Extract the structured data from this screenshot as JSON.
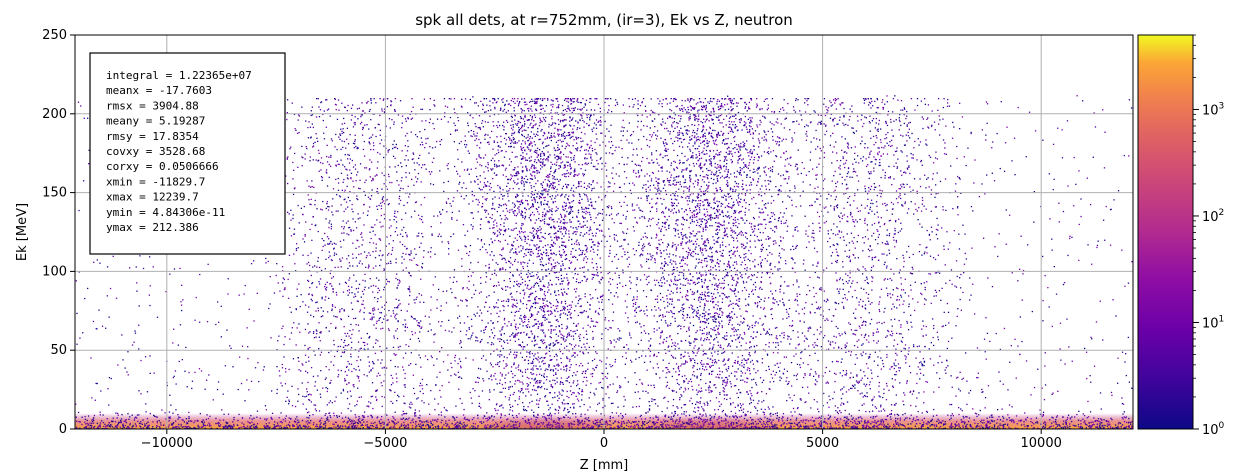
{
  "chart_data": {
    "type": "heatmap",
    "title": "spk all dets, at r=752mm, (ir=3), Ek vs Z, neutron",
    "xlabel": "Z [mm]",
    "ylabel": "Ek [MeV]",
    "xlim": [
      -12100,
      12100
    ],
    "ylim": [
      0,
      250
    ],
    "x_ticks": [
      -10000,
      -5000,
      0,
      5000,
      10000
    ],
    "x_tick_labels": [
      "−10000",
      "−5000",
      "0",
      "5000",
      "10000"
    ],
    "y_ticks": [
      0,
      50,
      100,
      150,
      200,
      250
    ],
    "y_tick_labels": [
      "0",
      "50",
      "100",
      "150",
      "200",
      "250"
    ],
    "grid": true,
    "colormap": "plasma",
    "colorbar": {
      "scale": "log",
      "range": [
        1,
        5000
      ],
      "ticks": [
        1,
        10,
        100,
        1000
      ],
      "tick_labels": [
        "10^0",
        "10^1",
        "10^2",
        "10^3"
      ]
    },
    "density_lobes": [
      {
        "z_center": -1400,
        "ek_top": 200
      },
      {
        "z_center": 2400,
        "ek_top": 200
      },
      {
        "z_center": -5500,
        "ek_top": 200
      },
      {
        "z_center": 6000,
        "ek_top": 200
      }
    ],
    "stats_box": {
      "position": "top-left",
      "entries": [
        {
          "key": "integral",
          "value": "1.22365e+07"
        },
        {
          "key": "meanx",
          "value": "-17.7603"
        },
        {
          "key": "rmsx",
          "value": "3904.88"
        },
        {
          "key": "meany",
          "value": "5.19287"
        },
        {
          "key": "rmsy",
          "value": "17.8354"
        },
        {
          "key": "covxy",
          "value": "3528.68"
        },
        {
          "key": "corxy",
          "value": "0.0506666"
        },
        {
          "key": "xmin",
          "value": "-11829.7"
        },
        {
          "key": "xmax",
          "value": "12239.7"
        },
        {
          "key": "ymin",
          "value": "4.84306e-11"
        },
        {
          "key": "ymax",
          "value": "212.386"
        }
      ]
    }
  }
}
